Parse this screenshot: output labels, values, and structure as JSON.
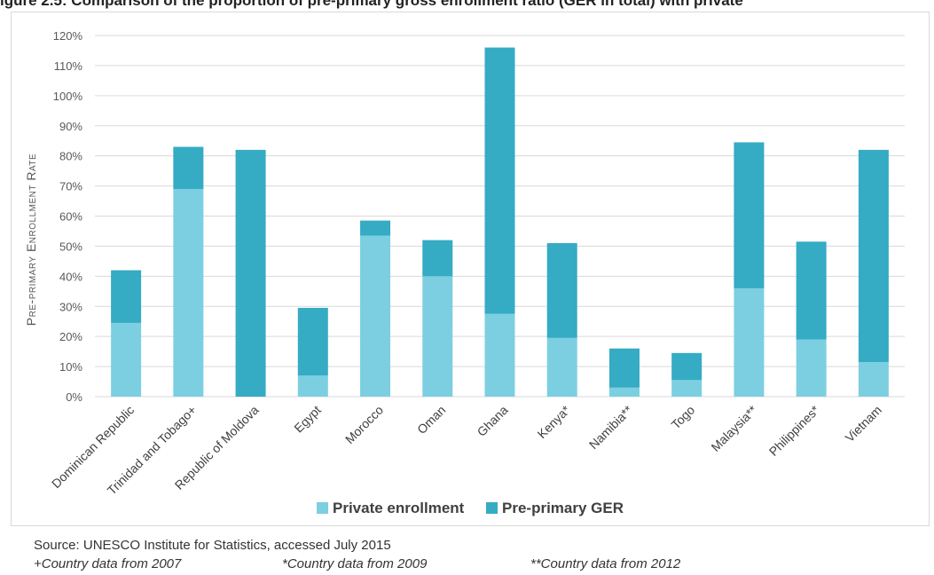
{
  "title": "igure 2.5: Comparison of the proportion of pre-primary gross enrollment ratio (GER in total) with private",
  "source": "Source: UNESCO Institute for Statistics, accessed July 2015",
  "notes": [
    "+Country data from 2007",
    "*Country data from 2009",
    "**Country data from 2012"
  ],
  "colors": {
    "private": "#7ccfe1",
    "ger": "#35abc4",
    "grid": "#d9d9d9",
    "text": "#595959"
  },
  "chart_data": {
    "type": "bar",
    "stacked": true,
    "categories": [
      "Dominican Republic",
      "Trinidad and Tobago+",
      "Republic of Moldova",
      "Egypt",
      "Morocco",
      "Oman",
      "Ghana",
      "Kenya*",
      "Namibia**",
      "Togo",
      "Malaysia**",
      "Philippines*",
      "Vietnam"
    ],
    "series": [
      {
        "name": "Private enrollment",
        "values": [
          24.5,
          69,
          0,
          7,
          53.5,
          40,
          27.5,
          19.5,
          3,
          5.5,
          36,
          19,
          11.5
        ]
      },
      {
        "name": "Pre-primary GER",
        "values": [
          17.5,
          14,
          82,
          22.5,
          5,
          12,
          88.5,
          31.5,
          13,
          9,
          48.5,
          32.5,
          70.5
        ]
      }
    ],
    "ylabel": "Pre-primary Enrollment Rate",
    "ylim": [
      0,
      120
    ],
    "yticks": [
      "0%",
      "10%",
      "20%",
      "30%",
      "40%",
      "50%",
      "60%",
      "70%",
      "80%",
      "90%",
      "100%",
      "110%",
      "120%"
    ],
    "grid": true,
    "legend": "bottom"
  }
}
